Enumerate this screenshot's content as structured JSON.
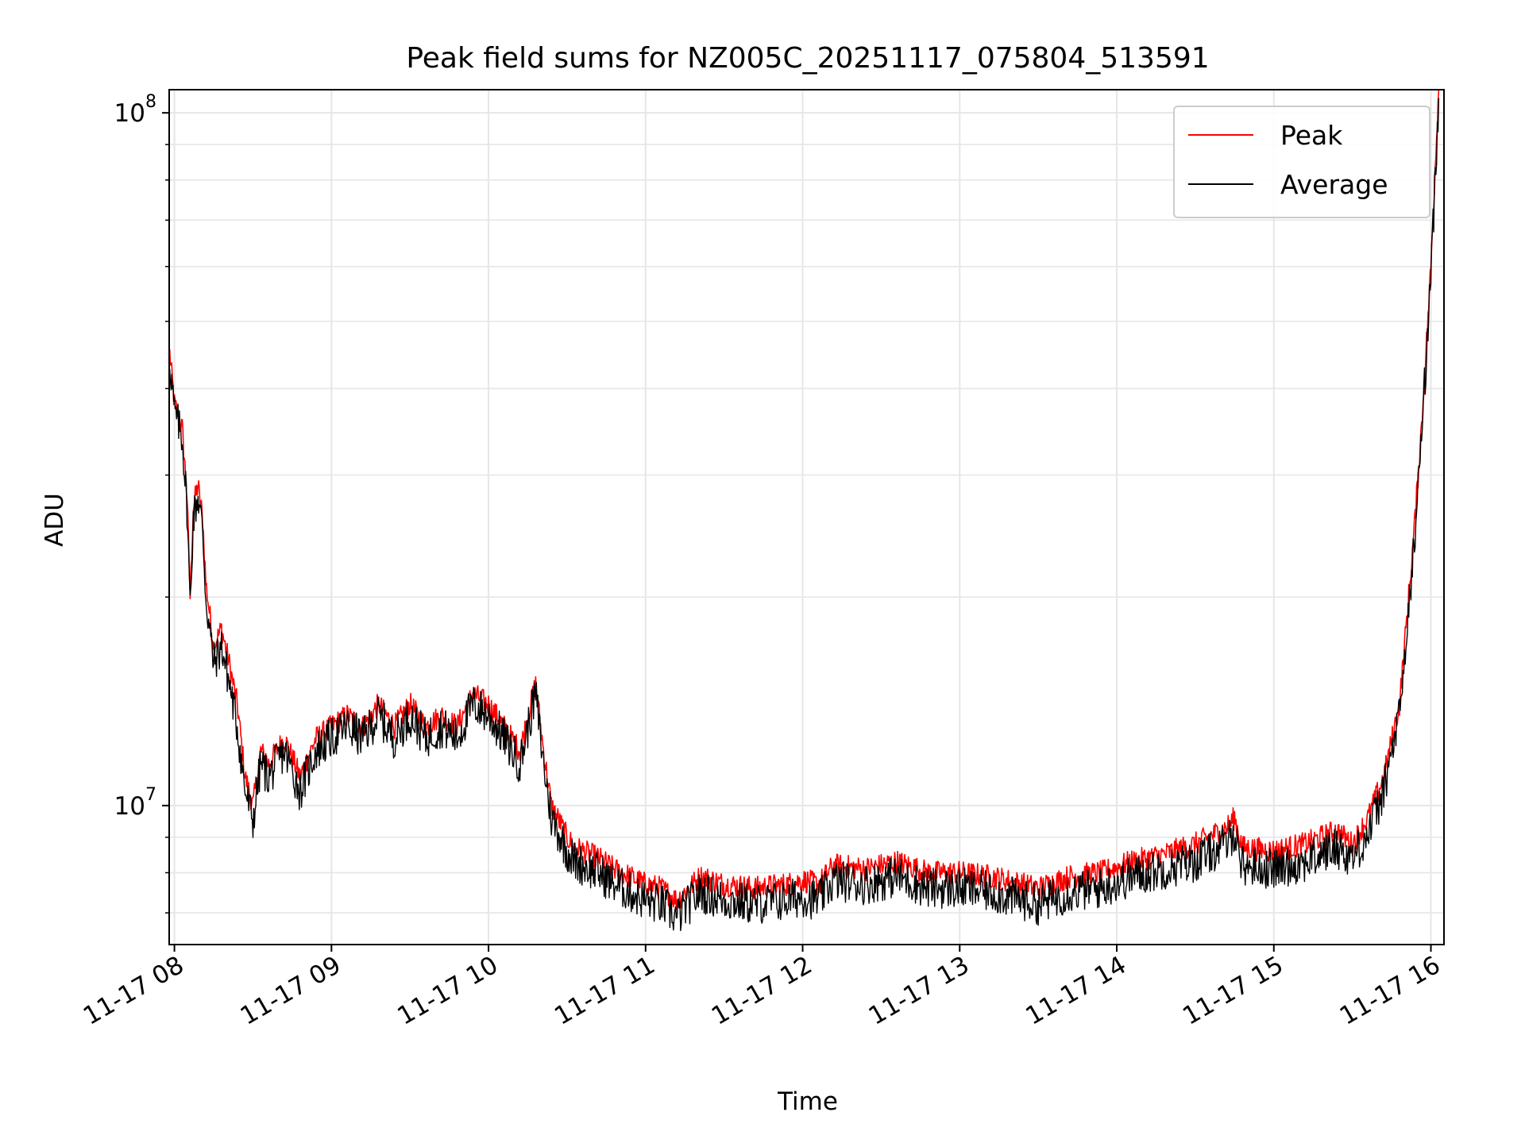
{
  "chart_data": {
    "type": "line",
    "title": "Peak field sums for NZ005C_20251117_075804_513591",
    "xlabel": "Time",
    "ylabel": "ADU",
    "y_scale": "log",
    "ylim": [
      6300000,
      108000000
    ],
    "xlim": [
      "2025-11-17 07:58",
      "2025-11-17 16:05"
    ],
    "x_ticks": [
      "11-17 08",
      "11-17 09",
      "11-17 10",
      "11-17 11",
      "11-17 12",
      "11-17 13",
      "11-17 14",
      "11-17 15",
      "11-17 16"
    ],
    "y_ticks": [
      {
        "value": 10000000,
        "base": "10",
        "exp": "7"
      },
      {
        "value": 100000000,
        "base": "10",
        "exp": "8"
      }
    ],
    "grid": true,
    "legend_position": "top-right",
    "series": [
      {
        "name": "Peak",
        "color": "#ff0000"
      },
      {
        "name": "Average",
        "color": "#000000"
      }
    ],
    "time_hours": [
      7.97,
      8.0,
      8.05,
      8.08,
      8.1,
      8.12,
      8.15,
      8.18,
      8.2,
      8.25,
      8.3,
      8.35,
      8.4,
      8.45,
      8.5,
      8.55,
      8.6,
      8.7,
      8.8,
      8.9,
      9.0,
      9.1,
      9.2,
      9.3,
      9.4,
      9.5,
      9.6,
      9.7,
      9.8,
      9.9,
      10.0,
      10.1,
      10.2,
      10.3,
      10.35,
      10.4,
      10.45,
      10.5,
      10.55,
      10.6,
      10.7,
      10.8,
      10.9,
      11.0,
      11.1,
      11.2,
      11.25,
      11.35,
      11.5,
      11.7,
      11.9,
      12.0,
      12.1,
      12.2,
      12.4,
      12.6,
      12.8,
      13.0,
      13.2,
      13.4,
      13.5,
      13.7,
      13.9,
      14.1,
      14.3,
      14.5,
      14.7,
      14.75,
      14.8,
      15.0,
      15.2,
      15.4,
      15.5,
      15.6,
      15.7,
      15.8,
      15.85,
      15.9,
      15.95,
      16.0,
      16.05
    ],
    "peak_values": [
      45000000,
      38000000,
      35000000,
      28000000,
      20000000,
      27000000,
      29000000,
      26000000,
      21000000,
      17000000,
      18000000,
      16000000,
      14000000,
      11000000,
      10000000,
      12000000,
      11500000,
      12500000,
      11000000,
      12500000,
      13000000,
      13500000,
      13000000,
      14000000,
      13000000,
      14000000,
      13000000,
      13500000,
      13000000,
      14500000,
      14000000,
      13000000,
      12000000,
      15000000,
      12000000,
      10000000,
      9500000,
      9000000,
      8700000,
      8600000,
      8400000,
      8100000,
      7900000,
      7700000,
      7600000,
      7300000,
      7500000,
      7900000,
      7700000,
      7600000,
      7700000,
      7800000,
      7700000,
      8200000,
      8100000,
      8300000,
      8000000,
      8000000,
      7900000,
      7700000,
      7600000,
      7900000,
      8000000,
      8300000,
      8500000,
      8800000,
      9300000,
      9600000,
      8700000,
      8600000,
      8800000,
      9200000,
      8800000,
      9600000,
      11000000,
      14000000,
      19000000,
      26000000,
      38000000,
      60000000,
      110000000
    ],
    "average_values": [
      44000000,
      37000000,
      34000000,
      27000000,
      19500000,
      26000000,
      28000000,
      25000000,
      20000000,
      16000000,
      17000000,
      15000000,
      13000000,
      10500000,
      9500000,
      11500000,
      11000000,
      12000000,
      10500000,
      12000000,
      12500000,
      13000000,
      12500000,
      13500000,
      12500000,
      13500000,
      12500000,
      13000000,
      12500000,
      14000000,
      13500000,
      12500000,
      11500000,
      14500000,
      11500000,
      9600000,
      9100000,
      8600000,
      8300000,
      8200000,
      8000000,
      7700000,
      7500000,
      7300000,
      7200000,
      6900000,
      7100000,
      7500000,
      7300000,
      7200000,
      7300000,
      7400000,
      7300000,
      7800000,
      7700000,
      7900000,
      7600000,
      7600000,
      7500000,
      7300000,
      7200000,
      7500000,
      7600000,
      7900000,
      8100000,
      8300000,
      8800000,
      9200000,
      8200000,
      8100000,
      8300000,
      8700000,
      8400000,
      9100000,
      10500000,
      13500000,
      18000000,
      25000000,
      37000000,
      58000000,
      105000000
    ]
  }
}
